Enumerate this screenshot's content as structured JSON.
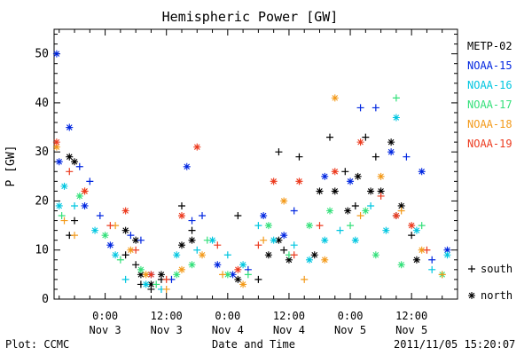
{
  "chart_data": {
    "type": "scatter",
    "title": "Hemispheric Power [GW]",
    "xlabel": "Date and Time",
    "ylabel": "P [GW]",
    "ylim": [
      0,
      55
    ],
    "xlim": [
      "2011-11-02 14:00",
      "2011-11-05 21:00"
    ],
    "grid": false,
    "legend_position": "right",
    "y_ticks": [
      0,
      10,
      20,
      30,
      40,
      50
    ],
    "x_ticks": [
      {
        "t": "2011-11-03 00:00",
        "time": "0:00",
        "date": "Nov 3"
      },
      {
        "t": "2011-11-03 12:00",
        "time": "12:00",
        "date": "Nov 3"
      },
      {
        "t": "2011-11-04 00:00",
        "time": "0:00",
        "date": "Nov 4"
      },
      {
        "t": "2011-11-04 12:00",
        "time": "12:00",
        "date": "Nov 4"
      },
      {
        "t": "2011-11-05 00:00",
        "time": "0:00",
        "date": "Nov 5"
      },
      {
        "t": "2011-11-05 12:00",
        "time": "12:00",
        "date": "Nov 5"
      }
    ],
    "marker_legend": [
      {
        "symbol": "+",
        "label": "south"
      },
      {
        "symbol": "*",
        "label": "north"
      }
    ],
    "series": [
      {
        "name": "METP-02",
        "color": "#000000",
        "points": [
          {
            "t": "2011-11-02 17:00",
            "y": 29,
            "h": "north"
          },
          {
            "t": "2011-11-02 17:00",
            "y": 13,
            "h": "south"
          },
          {
            "t": "2011-11-02 18:00",
            "y": 28,
            "h": "north"
          },
          {
            "t": "2011-11-02 18:00",
            "y": 16,
            "h": "south"
          },
          {
            "t": "2011-11-03 04:00",
            "y": 14,
            "h": "north"
          },
          {
            "t": "2011-11-03 04:00",
            "y": 9,
            "h": "south"
          },
          {
            "t": "2011-11-03 06:00",
            "y": 12,
            "h": "north"
          },
          {
            "t": "2011-11-03 06:00",
            "y": 7,
            "h": "south"
          },
          {
            "t": "2011-11-03 07:00",
            "y": 5,
            "h": "north"
          },
          {
            "t": "2011-11-03 07:00",
            "y": 3,
            "h": "south"
          },
          {
            "t": "2011-11-03 09:00",
            "y": 3,
            "h": "north"
          },
          {
            "t": "2011-11-03 09:00",
            "y": 2,
            "h": "south"
          },
          {
            "t": "2011-11-03 11:00",
            "y": 5,
            "h": "north"
          },
          {
            "t": "2011-11-03 11:00",
            "y": 4,
            "h": "south"
          },
          {
            "t": "2011-11-03 15:00",
            "y": 11,
            "h": "north"
          },
          {
            "t": "2011-11-03 15:00",
            "y": 19,
            "h": "south"
          },
          {
            "t": "2011-11-03 17:00",
            "y": 12,
            "h": "north"
          },
          {
            "t": "2011-11-03 17:00",
            "y": 14,
            "h": "south"
          },
          {
            "t": "2011-11-04 02:00",
            "y": 17,
            "h": "south"
          },
          {
            "t": "2011-11-04 02:00",
            "y": 4,
            "h": "north"
          },
          {
            "t": "2011-11-04 06:00",
            "y": 4,
            "h": "south"
          },
          {
            "t": "2011-11-04 08:00",
            "y": 9,
            "h": "north"
          },
          {
            "t": "2011-11-04 10:00",
            "y": 30,
            "h": "south"
          },
          {
            "t": "2011-11-04 10:00",
            "y": 12,
            "h": "north"
          },
          {
            "t": "2011-11-04 11:00",
            "y": 10,
            "h": "south"
          },
          {
            "t": "2011-11-04 12:00",
            "y": 8,
            "h": "north"
          },
          {
            "t": "2011-11-04 14:00",
            "y": 29,
            "h": "south"
          },
          {
            "t": "2011-11-04 17:00",
            "y": 9,
            "h": "north"
          },
          {
            "t": "2011-11-04 18:00",
            "y": 22,
            "h": "north"
          },
          {
            "t": "2011-11-04 20:00",
            "y": 33,
            "h": "south"
          },
          {
            "t": "2011-11-04 21:00",
            "y": 22,
            "h": "north"
          },
          {
            "t": "2011-11-04 23:00",
            "y": 26,
            "h": "south"
          },
          {
            "t": "2011-11-04 23:30",
            "y": 18,
            "h": "north"
          },
          {
            "t": "2011-11-05 01:00",
            "y": 19,
            "h": "south"
          },
          {
            "t": "2011-11-05 01:30",
            "y": 25,
            "h": "north"
          },
          {
            "t": "2011-11-05 03:00",
            "y": 33,
            "h": "south"
          },
          {
            "t": "2011-11-05 04:00",
            "y": 22,
            "h": "north"
          },
          {
            "t": "2011-11-05 05:00",
            "y": 29,
            "h": "south"
          },
          {
            "t": "2011-11-05 06:00",
            "y": 22,
            "h": "north"
          },
          {
            "t": "2011-11-05 08:00",
            "y": 32,
            "h": "north"
          },
          {
            "t": "2011-11-05 09:00",
            "y": 17,
            "h": "south"
          },
          {
            "t": "2011-11-05 10:00",
            "y": 19,
            "h": "north"
          },
          {
            "t": "2011-11-05 12:00",
            "y": 13,
            "h": "south"
          },
          {
            "t": "2011-11-05 13:00",
            "y": 8,
            "h": "north"
          }
        ]
      },
      {
        "name": "NOAA-15",
        "color": "#0026e0",
        "points": [
          {
            "t": "2011-11-02 14:30",
            "y": 50,
            "h": "north"
          },
          {
            "t": "2011-11-02 15:00",
            "y": 28,
            "h": "north"
          },
          {
            "t": "2011-11-02 17:00",
            "y": 35,
            "h": "north"
          },
          {
            "t": "2011-11-02 19:00",
            "y": 27,
            "h": "south"
          },
          {
            "t": "2011-11-02 20:00",
            "y": 19,
            "h": "north"
          },
          {
            "t": "2011-11-02 21:00",
            "y": 24,
            "h": "south"
          },
          {
            "t": "2011-11-02 23:00",
            "y": 17,
            "h": "south"
          },
          {
            "t": "2011-11-03 01:00",
            "y": 11,
            "h": "north"
          },
          {
            "t": "2011-11-03 05:00",
            "y": 13,
            "h": "south"
          },
          {
            "t": "2011-11-03 07:00",
            "y": 12,
            "h": "south"
          },
          {
            "t": "2011-11-03 09:00",
            "y": 5,
            "h": "north"
          },
          {
            "t": "2011-11-03 13:00",
            "y": 4,
            "h": "south"
          },
          {
            "t": "2011-11-03 16:00",
            "y": 27,
            "h": "north"
          },
          {
            "t": "2011-11-03 17:00",
            "y": 16,
            "h": "south"
          },
          {
            "t": "2011-11-03 19:00",
            "y": 17,
            "h": "south"
          },
          {
            "t": "2011-11-03 22:00",
            "y": 7,
            "h": "north"
          },
          {
            "t": "2011-11-04 01:00",
            "y": 5,
            "h": "north"
          },
          {
            "t": "2011-11-04 04:00",
            "y": 6,
            "h": "south"
          },
          {
            "t": "2011-11-04 07:00",
            "y": 17,
            "h": "north"
          },
          {
            "t": "2011-11-04 11:00",
            "y": 13,
            "h": "north"
          },
          {
            "t": "2011-11-04 13:00",
            "y": 18,
            "h": "south"
          },
          {
            "t": "2011-11-04 19:00",
            "y": 25,
            "h": "north"
          },
          {
            "t": "2011-11-05 00:00",
            "y": 24,
            "h": "north"
          },
          {
            "t": "2011-11-05 02:00",
            "y": 39,
            "h": "south"
          },
          {
            "t": "2011-11-05 05:00",
            "y": 39,
            "h": "south"
          },
          {
            "t": "2011-11-05 08:00",
            "y": 30,
            "h": "north"
          },
          {
            "t": "2011-11-05 11:00",
            "y": 29,
            "h": "south"
          },
          {
            "t": "2011-11-05 14:00",
            "y": 26,
            "h": "north"
          },
          {
            "t": "2011-11-05 16:00",
            "y": 8,
            "h": "south"
          },
          {
            "t": "2011-11-05 19:00",
            "y": 10,
            "h": "north"
          }
        ]
      },
      {
        "name": "NOAA-16",
        "color": "#00c6e0",
        "points": [
          {
            "t": "2011-11-02 15:00",
            "y": 19,
            "h": "north"
          },
          {
            "t": "2011-11-02 16:00",
            "y": 23,
            "h": "north"
          },
          {
            "t": "2011-11-02 18:00",
            "y": 19,
            "h": "south"
          },
          {
            "t": "2011-11-02 22:00",
            "y": 14,
            "h": "north"
          },
          {
            "t": "2011-11-03 02:00",
            "y": 9,
            "h": "north"
          },
          {
            "t": "2011-11-03 04:00",
            "y": 4,
            "h": "south"
          },
          {
            "t": "2011-11-03 08:00",
            "y": 3,
            "h": "north"
          },
          {
            "t": "2011-11-03 11:00",
            "y": 2,
            "h": "south"
          },
          {
            "t": "2011-11-03 14:00",
            "y": 9,
            "h": "north"
          },
          {
            "t": "2011-11-03 18:00",
            "y": 10,
            "h": "south"
          },
          {
            "t": "2011-11-03 21:00",
            "y": 12,
            "h": "north"
          },
          {
            "t": "2011-11-04 00:00",
            "y": 9,
            "h": "south"
          },
          {
            "t": "2011-11-04 03:00",
            "y": 7,
            "h": "north"
          },
          {
            "t": "2011-11-04 06:00",
            "y": 15,
            "h": "south"
          },
          {
            "t": "2011-11-04 09:00",
            "y": 12,
            "h": "north"
          },
          {
            "t": "2011-11-04 13:00",
            "y": 11,
            "h": "south"
          },
          {
            "t": "2011-11-04 16:00",
            "y": 8,
            "h": "north"
          },
          {
            "t": "2011-11-04 19:00",
            "y": 12,
            "h": "north"
          },
          {
            "t": "2011-11-04 22:00",
            "y": 14,
            "h": "south"
          },
          {
            "t": "2011-11-05 01:00",
            "y": 12,
            "h": "north"
          },
          {
            "t": "2011-11-05 04:00",
            "y": 19,
            "h": "south"
          },
          {
            "t": "2011-11-05 07:00",
            "y": 14,
            "h": "north"
          },
          {
            "t": "2011-11-05 09:00",
            "y": 37,
            "h": "north"
          },
          {
            "t": "2011-11-05 13:00",
            "y": 14,
            "h": "north"
          },
          {
            "t": "2011-11-05 16:00",
            "y": 6,
            "h": "south"
          },
          {
            "t": "2011-11-05 19:00",
            "y": 9,
            "h": "north"
          }
        ]
      },
      {
        "name": "NOAA-17",
        "color": "#33e07a",
        "points": [
          {
            "t": "2011-11-02 15:30",
            "y": 17,
            "h": "south"
          },
          {
            "t": "2011-11-02 19:00",
            "y": 21,
            "h": "north"
          },
          {
            "t": "2011-11-03 00:00",
            "y": 13,
            "h": "north"
          },
          {
            "t": "2011-11-03 03:00",
            "y": 8,
            "h": "south"
          },
          {
            "t": "2011-11-03 07:00",
            "y": 6,
            "h": "north"
          },
          {
            "t": "2011-11-03 10:00",
            "y": 3,
            "h": "south"
          },
          {
            "t": "2011-11-03 14:00",
            "y": 5,
            "h": "north"
          },
          {
            "t": "2011-11-03 17:00",
            "y": 7,
            "h": "north"
          },
          {
            "t": "2011-11-03 20:00",
            "y": 12,
            "h": "south"
          },
          {
            "t": "2011-11-04 00:00",
            "y": 5,
            "h": "north"
          },
          {
            "t": "2011-11-04 04:00",
            "y": 5,
            "h": "south"
          },
          {
            "t": "2011-11-04 08:00",
            "y": 15,
            "h": "north"
          },
          {
            "t": "2011-11-04 12:00",
            "y": 9,
            "h": "south"
          },
          {
            "t": "2011-11-04 16:00",
            "y": 15,
            "h": "north"
          },
          {
            "t": "2011-11-04 20:00",
            "y": 18,
            "h": "north"
          },
          {
            "t": "2011-11-05 00:00",
            "y": 15,
            "h": "south"
          },
          {
            "t": "2011-11-05 03:00",
            "y": 18,
            "h": "north"
          },
          {
            "t": "2011-11-05 05:00",
            "y": 9,
            "h": "north"
          },
          {
            "t": "2011-11-05 09:00",
            "y": 41,
            "h": "south"
          },
          {
            "t": "2011-11-05 10:00",
            "y": 7,
            "h": "north"
          },
          {
            "t": "2011-11-05 14:00",
            "y": 15,
            "h": "south"
          },
          {
            "t": "2011-11-05 18:00",
            "y": 5,
            "h": "north"
          }
        ]
      },
      {
        "name": "NOAA-18",
        "color": "#f39a1a",
        "points": [
          {
            "t": "2011-11-02 14:30",
            "y": 31,
            "h": "north"
          },
          {
            "t": "2011-11-02 16:00",
            "y": 16,
            "h": "south"
          },
          {
            "t": "2011-11-02 18:00",
            "y": 13,
            "h": "south"
          },
          {
            "t": "2011-11-02 20:00",
            "y": 22,
            "h": "north"
          },
          {
            "t": "2011-11-03 02:00",
            "y": 15,
            "h": "south"
          },
          {
            "t": "2011-11-03 05:00",
            "y": 10,
            "h": "north"
          },
          {
            "t": "2011-11-03 08:00",
            "y": 5,
            "h": "north"
          },
          {
            "t": "2011-11-03 12:00",
            "y": 2,
            "h": "south"
          },
          {
            "t": "2011-11-03 15:00",
            "y": 6,
            "h": "north"
          },
          {
            "t": "2011-11-03 19:00",
            "y": 9,
            "h": "north"
          },
          {
            "t": "2011-11-03 23:00",
            "y": 5,
            "h": "south"
          },
          {
            "t": "2011-11-04 03:00",
            "y": 3,
            "h": "north"
          },
          {
            "t": "2011-11-04 07:00",
            "y": 12,
            "h": "south"
          },
          {
            "t": "2011-11-04 11:00",
            "y": 20,
            "h": "north"
          },
          {
            "t": "2011-11-04 15:00",
            "y": 4,
            "h": "south"
          },
          {
            "t": "2011-11-04 19:00",
            "y": 8,
            "h": "north"
          },
          {
            "t": "2011-11-04 21:00",
            "y": 41,
            "h": "north"
          },
          {
            "t": "2011-11-05 02:00",
            "y": 17,
            "h": "south"
          },
          {
            "t": "2011-11-05 06:00",
            "y": 25,
            "h": "north"
          },
          {
            "t": "2011-11-05 10:00",
            "y": 18,
            "h": "south"
          },
          {
            "t": "2011-11-05 14:00",
            "y": 10,
            "h": "north"
          },
          {
            "t": "2011-11-05 18:00",
            "y": 5,
            "h": "south"
          }
        ]
      },
      {
        "name": "NOAA-19",
        "color": "#ec3a1e",
        "points": [
          {
            "t": "2011-11-02 14:30",
            "y": 32,
            "h": "north"
          },
          {
            "t": "2011-11-02 17:00",
            "y": 26,
            "h": "south"
          },
          {
            "t": "2011-11-02 20:00",
            "y": 22,
            "h": "north"
          },
          {
            "t": "2011-11-03 01:00",
            "y": 15,
            "h": "south"
          },
          {
            "t": "2011-11-03 04:00",
            "y": 18,
            "h": "north"
          },
          {
            "t": "2011-11-03 06:00",
            "y": 10,
            "h": "south"
          },
          {
            "t": "2011-11-03 09:00",
            "y": 5,
            "h": "north"
          },
          {
            "t": "2011-11-03 12:00",
            "y": 4,
            "h": "south"
          },
          {
            "t": "2011-11-03 15:00",
            "y": 17,
            "h": "north"
          },
          {
            "t": "2011-11-03 18:00",
            "y": 31,
            "h": "north"
          },
          {
            "t": "2011-11-03 22:00",
            "y": 11,
            "h": "south"
          },
          {
            "t": "2011-11-04 02:00",
            "y": 6,
            "h": "north"
          },
          {
            "t": "2011-11-04 06:00",
            "y": 11,
            "h": "south"
          },
          {
            "t": "2011-11-04 09:00",
            "y": 24,
            "h": "north"
          },
          {
            "t": "2011-11-04 13:00",
            "y": 9,
            "h": "south"
          },
          {
            "t": "2011-11-04 14:00",
            "y": 24,
            "h": "north"
          },
          {
            "t": "2011-11-04 18:00",
            "y": 15,
            "h": "south"
          },
          {
            "t": "2011-11-04 21:00",
            "y": 26,
            "h": "north"
          },
          {
            "t": "2011-11-05 02:00",
            "y": 32,
            "h": "north"
          },
          {
            "t": "2011-11-05 06:00",
            "y": 21,
            "h": "south"
          },
          {
            "t": "2011-11-05 09:00",
            "y": 17,
            "h": "north"
          },
          {
            "t": "2011-11-05 12:00",
            "y": 15,
            "h": "north"
          },
          {
            "t": "2011-11-05 15:00",
            "y": 10,
            "h": "south"
          }
        ]
      }
    ]
  },
  "footer": {
    "left": "Plot: CCMC",
    "center": "Date and Time",
    "right": "2011/11/05 15:20:07"
  }
}
